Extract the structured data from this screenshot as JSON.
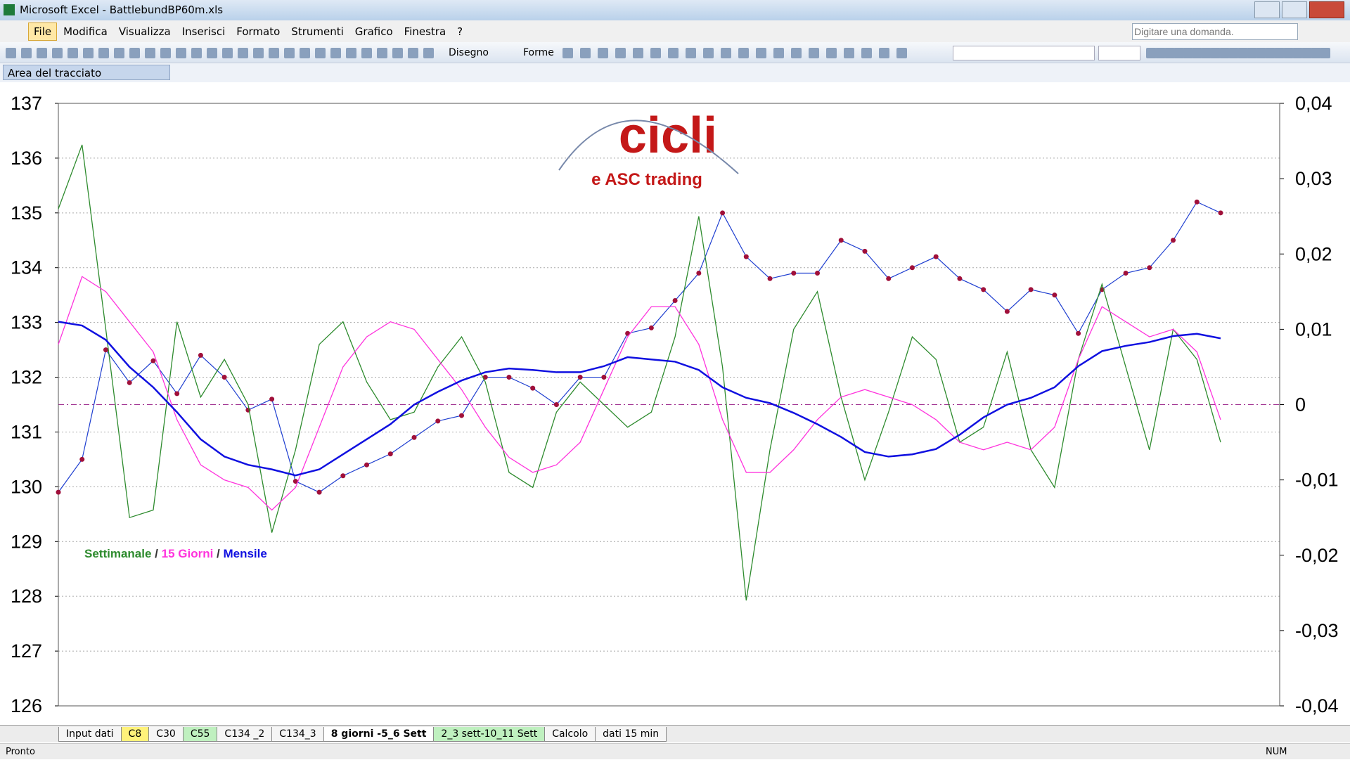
{
  "window": {
    "title": "Microsoft Excel - BattlebundBP60m.xls"
  },
  "menu": [
    "File",
    "Modifica",
    "Visualizza",
    "Inserisci",
    "Formato",
    "Strumenti",
    "Grafico",
    "Finestra",
    "?"
  ],
  "help_box": "Digitare una domanda.",
  "toolbar": {
    "drawing": "Disegno",
    "shapes": "Forme"
  },
  "chart_object": "Area del tracciato",
  "sheet_tabs": [
    "Input dati",
    "C8",
    "C30",
    "C55",
    "C134 _2",
    "C134_3",
    "8 giorni -5_6 Sett",
    "2_3 sett-10_11 Sett",
    "Calcolo",
    "dati 15 min"
  ],
  "status": {
    "left": "Pronto",
    "num": "NUM"
  },
  "chart_data": {
    "type": "line",
    "logo": {
      "title": "cicli",
      "subtitle": "e ASC trading"
    },
    "legend_separator": "/",
    "categories": [
      null,
      null,
      null,
      null,
      null,
      null,
      null,
      null,
      null,
      null,
      null,
      null,
      null,
      null,
      null,
      null,
      null,
      null,
      null,
      null,
      null,
      null,
      null,
      null,
      null,
      null,
      null,
      null,
      null,
      null,
      null,
      null,
      null,
      null,
      null,
      null,
      null,
      null,
      null,
      null,
      null,
      null,
      null,
      null,
      null,
      null,
      null,
      null,
      null,
      null
    ],
    "ylim": [
      126,
      137
    ],
    "yticks": [
      126,
      127,
      128,
      129,
      130,
      131,
      132,
      133,
      134,
      135,
      136,
      137
    ],
    "y2lim": [
      -0.04,
      0.04
    ],
    "y2ticks": [
      {
        "value": -0.04,
        "label": "-0,04"
      },
      {
        "value": -0.03,
        "label": "-0,03"
      },
      {
        "value": -0.02,
        "label": "-0,02"
      },
      {
        "value": -0.01,
        "label": "-0,01"
      },
      0,
      {
        "value": 0.01,
        "label": "0,01"
      },
      {
        "value": 0.02,
        "label": "0,02"
      },
      {
        "value": 0.03,
        "label": "0,03"
      },
      {
        "value": 0.04,
        "label": "0,04"
      }
    ],
    "grid": true,
    "legend_position": "lower-left",
    "series": [
      {
        "color": "#1f3fd0",
        "marker_color": "#a0103a",
        "values": [
          129.9,
          130.5,
          132.5,
          131.9,
          132.3,
          131.7,
          132.4,
          132.0,
          131.4,
          131.6,
          130.1,
          129.9,
          130.2,
          130.4,
          130.6,
          130.9,
          131.2,
          131.3,
          132.0,
          132.0,
          131.8,
          131.5,
          132.0,
          132.0,
          132.8,
          132.9,
          133.4,
          133.9,
          135.0,
          134.2,
          133.8,
          133.9,
          133.9,
          134.5,
          134.3,
          133.8,
          134.0,
          134.2,
          133.8,
          133.6,
          133.2,
          133.6,
          133.5,
          132.8,
          133.6,
          133.9,
          134.0,
          134.5,
          135.2,
          135.0
        ]
      },
      {
        "name": "Settimanale",
        "color": "#2e8b2e",
        "axis": "y2",
        "values": [
          0.026,
          0.0345,
          0.01,
          -0.015,
          -0.014,
          0.011,
          0.001,
          0.006,
          0,
          -0.017,
          -0.006,
          0.008,
          0.011,
          0.003,
          -0.002,
          -0.001,
          0.005,
          0.009,
          0.003,
          -0.009,
          -0.011,
          -0.001,
          0.003,
          0,
          -0.003,
          -0.001,
          0.009,
          0.025,
          0.005,
          -0.026,
          -0.006,
          0.01,
          0.015,
          0.001,
          -0.01,
          -0.001,
          0.009,
          0.006,
          -0.005,
          -0.003,
          0.007,
          -0.006,
          -0.011,
          0.006,
          0.016,
          0.005,
          -0.006,
          0.01,
          0.006,
          -0.005
        ]
      },
      {
        "name": "15 Giorni",
        "color": "#ff33dd",
        "axis": "y2",
        "values": [
          0.008,
          0.017,
          0.015,
          0.011,
          0.007,
          -0.002,
          -0.008,
          -0.01,
          -0.011,
          -0.014,
          -0.011,
          -0.003,
          0.005,
          0.009,
          0.011,
          0.01,
          0.006,
          0.002,
          -0.003,
          -0.007,
          -0.009,
          -0.008,
          -0.005,
          0.002,
          0.009,
          0.013,
          0.013,
          0.008,
          -0.002,
          -0.009,
          -0.009,
          -0.006,
          -0.002,
          0.001,
          0.002,
          0.001,
          0,
          -0.002,
          -0.005,
          -0.006,
          -0.005,
          -0.006,
          -0.003,
          0.006,
          0.013,
          0.011,
          0.009,
          0.01,
          0.007,
          -0.002
        ]
      },
      {
        "name": "Mensile",
        "color": "#1010e0",
        "axis": "y2",
        "values": [
          0.011,
          0.0105,
          0.0086,
          0.005,
          0.0023,
          -0.001,
          -0.0046,
          -0.0069,
          -0.008,
          -0.0086,
          -0.0094,
          -0.0086,
          -0.0066,
          -0.0046,
          -0.0026,
          0,
          0.0017,
          0.0032,
          0.0043,
          0.0048,
          0.0046,
          0.0043,
          0.0043,
          0.0051,
          0.0063,
          0.006,
          0.0057,
          0.0046,
          0.0023,
          0.0009,
          0.0002,
          -0.0011,
          -0.0026,
          -0.0043,
          -0.0063,
          -0.0069,
          -0.0066,
          -0.0059,
          -0.004,
          -0.0017,
          0,
          0.0009,
          0.0023,
          0.0051,
          0.0071,
          0.0078,
          0.0083,
          0.0091,
          0.0094,
          0.0088
        ]
      }
    ]
  }
}
